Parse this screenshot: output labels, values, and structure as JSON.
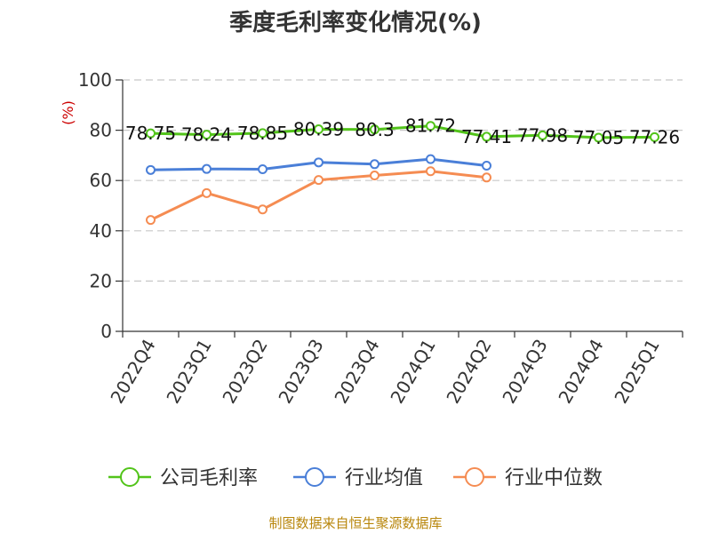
{
  "chart_data": {
    "type": "line",
    "title": "季度毛利率变化情况(%)",
    "ylabel": "(%)",
    "ylim": [
      0,
      100
    ],
    "yticks": [
      0,
      20,
      40,
      60,
      80,
      100
    ],
    "grid": true,
    "legend_position": "bottom",
    "categories": [
      "2022Q4",
      "2023Q1",
      "2023Q2",
      "2023Q3",
      "2023Q4",
      "2024Q1",
      "2024Q2",
      "2024Q3",
      "2024Q4",
      "2025Q1"
    ],
    "series": [
      {
        "name": "公司毛利率",
        "color": "#52c41a",
        "values": [
          78.75,
          78.24,
          78.85,
          80.39,
          80.3,
          81.72,
          77.41,
          77.98,
          77.05,
          77.26
        ],
        "labels": [
          "78.75",
          "78.24",
          "78.85",
          "80.39",
          "80.3",
          "81.72",
          "77.41",
          "77.98",
          "77.05",
          "77.26"
        ]
      },
      {
        "name": "行业均值",
        "color": "#4a7fd8",
        "values": [
          64.2,
          64.6,
          64.5,
          67.2,
          66.5,
          68.5,
          65.9,
          null,
          null,
          null
        ]
      },
      {
        "name": "行业中位数",
        "color": "#f58c52",
        "values": [
          44.3,
          55.0,
          48.5,
          60.2,
          62.0,
          63.7,
          61.2,
          null,
          null,
          null
        ]
      }
    ],
    "source": "制图数据来自恒生聚源数据库"
  }
}
